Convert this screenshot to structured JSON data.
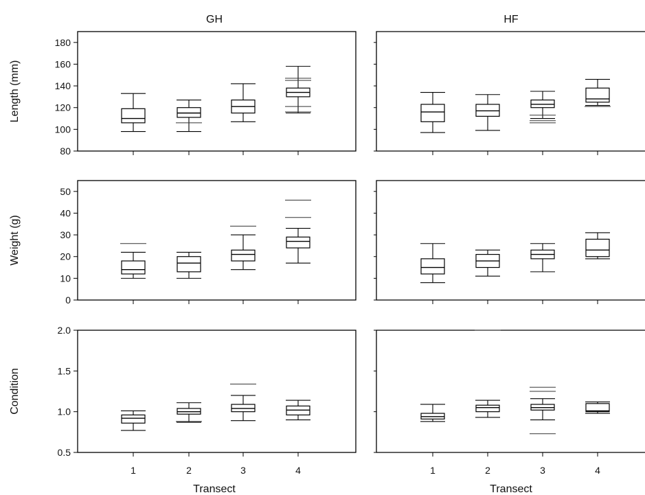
{
  "chart_data": {
    "type": "boxplot",
    "columns": [
      "GH",
      "HF"
    ],
    "categories": [
      "1",
      "2",
      "3",
      "4"
    ],
    "xlabel": "Transect",
    "panels": [
      {
        "id": "gh-length",
        "column": "GH",
        "ylabel": "Length (mm)",
        "ylim": [
          80,
          190
        ],
        "yticks": [
          "80",
          "100",
          "120",
          "140",
          "160",
          "180"
        ],
        "show_y_axis": true,
        "show_x_labels": false,
        "boxes": [
          {
            "category": "1",
            "whisker_low": 98,
            "q1": 106,
            "median": 110,
            "q3": 119,
            "whisker_high": 133,
            "outliers": []
          },
          {
            "category": "2",
            "whisker_low": 98,
            "q1": 111,
            "median": 115,
            "q3": 120,
            "whisker_high": 127,
            "outliers": [
              106
            ]
          },
          {
            "category": "3",
            "whisker_low": 107,
            "q1": 115,
            "median": 121,
            "q3": 127,
            "whisker_high": 142,
            "outliers": []
          },
          {
            "category": "4",
            "whisker_low": 115,
            "q1": 130,
            "median": 134,
            "q3": 138,
            "whisker_high": 158,
            "outliers": [
              116,
              121,
              145,
              147
            ]
          }
        ]
      },
      {
        "id": "hf-length",
        "column": "HF",
        "ylabel": "",
        "ylim": [
          80,
          190
        ],
        "yticks": [],
        "show_y_axis": false,
        "show_x_labels": false,
        "boxes": [
          {
            "category": "1",
            "whisker_low": 97,
            "q1": 107,
            "median": 116,
            "q3": 123,
            "whisker_high": 134,
            "outliers": []
          },
          {
            "category": "2",
            "whisker_low": 99,
            "q1": 112,
            "median": 117,
            "q3": 123,
            "whisker_high": 132,
            "outliers": []
          },
          {
            "category": "3",
            "whisker_low": 110,
            "q1": 120,
            "median": 123,
            "q3": 127,
            "whisker_high": 135,
            "outliers": [
              106,
              108,
              113
            ]
          },
          {
            "category": "4",
            "whisker_low": 122,
            "q1": 125,
            "median": 128,
            "q3": 138,
            "whisker_high": 146,
            "outliers": [
              121
            ]
          }
        ]
      },
      {
        "id": "gh-weight",
        "column": "GH",
        "ylabel": "Weight (g)",
        "ylim": [
          0,
          55
        ],
        "yticks": [
          "0",
          "10",
          "20",
          "30",
          "40",
          "50"
        ],
        "show_y_axis": true,
        "show_x_labels": false,
        "boxes": [
          {
            "category": "1",
            "whisker_low": 10,
            "q1": 12,
            "median": 14,
            "q3": 18,
            "whisker_high": 22,
            "outliers": [
              26
            ]
          },
          {
            "category": "2",
            "whisker_low": 10,
            "q1": 13,
            "median": 17,
            "q3": 20,
            "whisker_high": 22,
            "outliers": []
          },
          {
            "category": "3",
            "whisker_low": 14,
            "q1": 18,
            "median": 21,
            "q3": 23,
            "whisker_high": 30,
            "outliers": [
              34
            ]
          },
          {
            "category": "4",
            "whisker_low": 17,
            "q1": 24,
            "median": 27,
            "q3": 29,
            "whisker_high": 33,
            "outliers": [
              38,
              46
            ]
          }
        ]
      },
      {
        "id": "hf-weight",
        "column": "HF",
        "ylabel": "",
        "ylim": [
          0,
          55
        ],
        "yticks": [],
        "show_y_axis": false,
        "show_x_labels": false,
        "boxes": [
          {
            "category": "1",
            "whisker_low": 8,
            "q1": 12,
            "median": 15,
            "q3": 19,
            "whisker_high": 26,
            "outliers": []
          },
          {
            "category": "2",
            "whisker_low": 11,
            "q1": 15,
            "median": 18,
            "q3": 21,
            "whisker_high": 23,
            "outliers": []
          },
          {
            "category": "3",
            "whisker_low": 13,
            "q1": 19,
            "median": 21,
            "q3": 23,
            "whisker_high": 26,
            "outliers": []
          },
          {
            "category": "4",
            "whisker_low": 19,
            "q1": 20,
            "median": 23,
            "q3": 28,
            "whisker_high": 31,
            "outliers": []
          }
        ]
      },
      {
        "id": "gh-condition",
        "column": "GH",
        "ylabel": "Condition",
        "ylim": [
          0.5,
          2.0
        ],
        "yticks": [
          "0.5",
          "1.0",
          "1.5",
          "2.0"
        ],
        "show_y_axis": true,
        "show_x_labels": true,
        "boxes": [
          {
            "category": "1",
            "whisker_low": 0.77,
            "q1": 0.86,
            "median": 0.92,
            "q3": 0.96,
            "whisker_high": 1.01,
            "outliers": []
          },
          {
            "category": "2",
            "whisker_low": 0.87,
            "q1": 0.97,
            "median": 1.0,
            "q3": 1.04,
            "whisker_high": 1.11,
            "outliers": [
              0.88
            ]
          },
          {
            "category": "3",
            "whisker_low": 0.89,
            "q1": 1.0,
            "median": 1.04,
            "q3": 1.09,
            "whisker_high": 1.2,
            "outliers": [
              1.34
            ]
          },
          {
            "category": "4",
            "whisker_low": 0.9,
            "q1": 0.96,
            "median": 1.02,
            "q3": 1.07,
            "whisker_high": 1.14,
            "outliers": []
          }
        ]
      },
      {
        "id": "hf-condition",
        "column": "HF",
        "ylabel": "",
        "ylim": [
          0.5,
          2.0
        ],
        "yticks": [],
        "show_y_axis": false,
        "show_x_labels": true,
        "boxes": [
          {
            "category": "1",
            "whisker_low": 0.88,
            "q1": 0.91,
            "median": 0.94,
            "q3": 0.98,
            "whisker_high": 1.09,
            "outliers": []
          },
          {
            "category": "2",
            "whisker_low": 0.93,
            "q1": 1.0,
            "median": 1.05,
            "q3": 1.08,
            "whisker_high": 1.14,
            "outliers": [
              2.0
            ]
          },
          {
            "category": "3",
            "whisker_low": 0.9,
            "q1": 1.02,
            "median": 1.05,
            "q3": 1.09,
            "whisker_high": 1.16,
            "outliers": [
              0.73,
              1.25,
              1.3
            ]
          },
          {
            "category": "4",
            "whisker_low": 0.98,
            "q1": 1.0,
            "median": 1.01,
            "q3": 1.1,
            "whisker_high": 1.12,
            "outliers": []
          }
        ]
      }
    ]
  }
}
